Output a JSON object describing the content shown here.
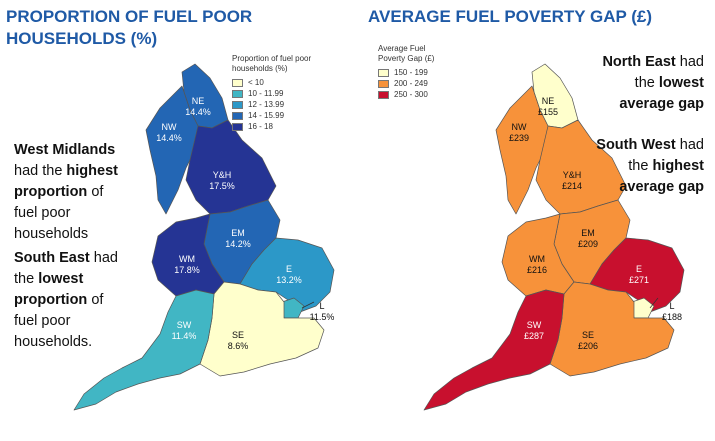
{
  "left": {
    "title": "PROPORTION OF FUEL POOR HOUSEHOLDS (%)",
    "legend": {
      "title": "Proportion of fuel poor households (%)",
      "items": [
        {
          "label": "< 10",
          "color": "#ffffcc"
        },
        {
          "label": "10 - 11.99",
          "color": "#41b6c4"
        },
        {
          "label": "12 - 13.99",
          "color": "#2c98c8"
        },
        {
          "label": "14 - 15.99",
          "color": "#2366b4"
        },
        {
          "label": "16 - 18",
          "color": "#253494"
        }
      ]
    },
    "note1": {
      "p1": "West Midlands",
      "p2": "had the",
      "p3": "highest",
      "p4": "proportion",
      "p5": "of",
      "p6": "fuel poor",
      "p7": "households"
    },
    "note2": {
      "p1": "South East",
      "p2": "had",
      "p3": "the",
      "p4": "lowest",
      "p5": "proportion",
      "p6": "of",
      "p7": "fuel poor",
      "p8": "households."
    },
    "regions": [
      {
        "code": "NE",
        "value": "14.4%",
        "color": "#2366b4"
      },
      {
        "code": "NW",
        "value": "14.4%",
        "color": "#2366b4"
      },
      {
        "code": "Y&H",
        "value": "17.5%",
        "color": "#253494"
      },
      {
        "code": "EM",
        "value": "14.2%",
        "color": "#2366b4"
      },
      {
        "code": "WM",
        "value": "17.8%",
        "color": "#253494"
      },
      {
        "code": "E",
        "value": "13.2%",
        "color": "#2c98c8"
      },
      {
        "code": "L",
        "value": "11.5%",
        "color": "#41b6c4"
      },
      {
        "code": "SW",
        "value": "11.4%",
        "color": "#41b6c4"
      },
      {
        "code": "SE",
        "value": "8.6%",
        "color": "#ffffcc"
      }
    ]
  },
  "right": {
    "title": "AVERAGE FUEL POVERTY GAP (£)",
    "legend": {
      "title": "Average Fuel Poverty Gap (£)",
      "items": [
        {
          "label": "150 - 199",
          "color": "#ffffcc"
        },
        {
          "label": "200 - 249",
          "color": "#f7923a"
        },
        {
          "label": "250 - 300",
          "color": "#c8102e"
        }
      ]
    },
    "note1": {
      "p1": "North East",
      "p2": "had",
      "p3": "the",
      "p4": "lowest",
      "p5": "average gap"
    },
    "note2": {
      "p1": "South West",
      "p2": "had",
      "p3": "the",
      "p4": "highest",
      "p5": "average gap"
    },
    "regions": [
      {
        "code": "NE",
        "value": "£155",
        "color": "#ffffcc"
      },
      {
        "code": "NW",
        "value": "£239",
        "color": "#f7923a"
      },
      {
        "code": "Y&H",
        "value": "£214",
        "color": "#f7923a"
      },
      {
        "code": "EM",
        "value": "£209",
        "color": "#f7923a"
      },
      {
        "code": "WM",
        "value": "£216",
        "color": "#f7923a"
      },
      {
        "code": "E",
        "value": "£271",
        "color": "#c8102e"
      },
      {
        "code": "L",
        "value": "£188",
        "color": "#ffffcc"
      },
      {
        "code": "SW",
        "value": "£287",
        "color": "#c8102e"
      },
      {
        "code": "SE",
        "value": "£206",
        "color": "#f7923a"
      }
    ]
  }
}
